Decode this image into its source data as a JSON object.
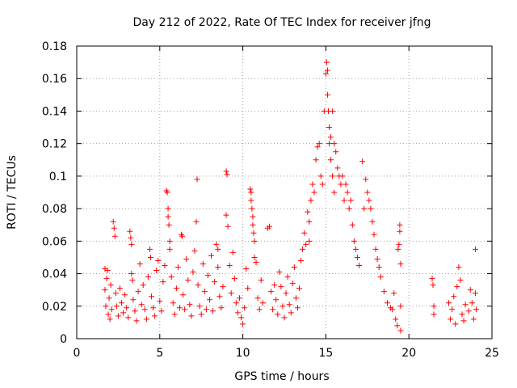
{
  "chart_data": {
    "type": "scatter",
    "title": "Day 212 of 2022, Rate Of TEC Index for receiver jfng",
    "xlabel": "GPS time / hours",
    "ylabel": "ROTI / TECUs",
    "xlim": [
      0,
      25
    ],
    "ylim": [
      0,
      0.18
    ],
    "xticks": [
      0,
      5,
      10,
      15,
      20,
      25
    ],
    "yticks": [
      0,
      0.02,
      0.04,
      0.06,
      0.08,
      0.1,
      0.12,
      0.14,
      0.16,
      0.18
    ],
    "ytick_labels": [
      "0",
      "0.02",
      "0.04",
      "0.06",
      "0.08",
      "0.1",
      "0.12",
      "0.14",
      "0.16",
      "0.18"
    ],
    "grid": true,
    "marker": "plus",
    "series": [
      {
        "color": "#ff0000",
        "points": [
          [
            1.7,
            0.043
          ],
          [
            1.7,
            0.03
          ],
          [
            1.75,
            0.02
          ],
          [
            1.8,
            0.037
          ],
          [
            1.85,
            0.042
          ],
          [
            1.9,
            0.015
          ],
          [
            1.95,
            0.025
          ],
          [
            2.0,
            0.012
          ],
          [
            2.05,
            0.033
          ],
          [
            2.1,
            0.018
          ],
          [
            2.2,
            0.072
          ],
          [
            2.25,
            0.068
          ],
          [
            2.3,
            0.063
          ],
          [
            2.35,
            0.028
          ],
          [
            2.4,
            0.02
          ],
          [
            2.5,
            0.014
          ],
          [
            2.6,
            0.031
          ],
          [
            2.7,
            0.022
          ],
          [
            2.8,
            0.016
          ],
          [
            2.9,
            0.027
          ],
          [
            3.0,
            0.019
          ],
          [
            3.1,
            0.013
          ],
          [
            3.2,
            0.066
          ],
          [
            3.25,
            0.062
          ],
          [
            3.3,
            0.058
          ],
          [
            3.3,
            0.04
          ],
          [
            3.35,
            0.036
          ],
          [
            3.4,
            0.024
          ],
          [
            3.5,
            0.017
          ],
          [
            3.6,
            0.011
          ],
          [
            3.7,
            0.029
          ],
          [
            3.8,
            0.046
          ],
          [
            3.9,
            0.021
          ],
          [
            4.0,
            0.033
          ],
          [
            4.1,
            0.018
          ],
          [
            4.2,
            0.012
          ],
          [
            4.3,
            0.038
          ],
          [
            4.4,
            0.055
          ],
          [
            4.45,
            0.05
          ],
          [
            4.5,
            0.026
          ],
          [
            4.6,
            0.019
          ],
          [
            4.7,
            0.014
          ],
          [
            4.8,
            0.042
          ],
          [
            4.9,
            0.048
          ],
          [
            5.0,
            0.023
          ],
          [
            5.1,
            0.017
          ],
          [
            5.2,
            0.035
          ],
          [
            5.3,
            0.045
          ],
          [
            5.4,
            0.091
          ],
          [
            5.45,
            0.09
          ],
          [
            5.5,
            0.08
          ],
          [
            5.5,
            0.075
          ],
          [
            5.55,
            0.07
          ],
          [
            5.6,
            0.06
          ],
          [
            5.6,
            0.055
          ],
          [
            5.7,
            0.038
          ],
          [
            5.8,
            0.022
          ],
          [
            5.9,
            0.015
          ],
          [
            6.0,
            0.031
          ],
          [
            6.1,
            0.044
          ],
          [
            6.2,
            0.019
          ],
          [
            6.3,
            0.064
          ],
          [
            6.35,
            0.063
          ],
          [
            6.4,
            0.027
          ],
          [
            6.5,
            0.018
          ],
          [
            6.6,
            0.049
          ],
          [
            6.7,
            0.036
          ],
          [
            6.8,
            0.021
          ],
          [
            6.9,
            0.014
          ],
          [
            7.0,
            0.041
          ],
          [
            7.1,
            0.054
          ],
          [
            7.2,
            0.072
          ],
          [
            7.25,
            0.098
          ],
          [
            7.3,
            0.033
          ],
          [
            7.4,
            0.02
          ],
          [
            7.5,
            0.015
          ],
          [
            7.6,
            0.046
          ],
          [
            7.7,
            0.029
          ],
          [
            7.8,
            0.018
          ],
          [
            7.9,
            0.039
          ],
          [
            8.0,
            0.024
          ],
          [
            8.1,
            0.051
          ],
          [
            8.2,
            0.017
          ],
          [
            8.3,
            0.035
          ],
          [
            8.4,
            0.058
          ],
          [
            8.5,
            0.055
          ],
          [
            8.5,
            0.044
          ],
          [
            8.6,
            0.026
          ],
          [
            8.7,
            0.019
          ],
          [
            8.8,
            0.032
          ],
          [
            9.0,
            0.103
          ],
          [
            9.05,
            0.101
          ],
          [
            9.0,
            0.076
          ],
          [
            9.1,
            0.069
          ],
          [
            9.2,
            0.045
          ],
          [
            9.3,
            0.028
          ],
          [
            9.4,
            0.053
          ],
          [
            9.5,
            0.037
          ],
          [
            9.6,
            0.022
          ],
          [
            9.7,
            0.016
          ],
          [
            9.8,
            0.025
          ],
          [
            9.9,
            0.013
          ],
          [
            10.0,
            0.009
          ],
          [
            10.1,
            0.019
          ],
          [
            10.2,
            0.043
          ],
          [
            10.3,
            0.031
          ],
          [
            10.45,
            0.092
          ],
          [
            10.5,
            0.09
          ],
          [
            10.5,
            0.085
          ],
          [
            10.55,
            0.08
          ],
          [
            10.6,
            0.075
          ],
          [
            10.6,
            0.07
          ],
          [
            10.65,
            0.065
          ],
          [
            10.7,
            0.06
          ],
          [
            10.7,
            0.05
          ],
          [
            10.8,
            0.047
          ],
          [
            10.9,
            0.025
          ],
          [
            11.0,
            0.018
          ],
          [
            11.1,
            0.036
          ],
          [
            11.2,
            0.022
          ],
          [
            11.5,
            0.068
          ],
          [
            11.6,
            0.069
          ],
          [
            11.7,
            0.029
          ],
          [
            11.8,
            0.018
          ],
          [
            11.9,
            0.033
          ],
          [
            12.0,
            0.024
          ],
          [
            12.1,
            0.015
          ],
          [
            12.2,
            0.041
          ],
          [
            12.3,
            0.032
          ],
          [
            12.4,
            0.02
          ],
          [
            12.5,
            0.013
          ],
          [
            12.6,
            0.028
          ],
          [
            12.7,
            0.038
          ],
          [
            12.8,
            0.021
          ],
          [
            12.9,
            0.016
          ],
          [
            13.0,
            0.034
          ],
          [
            13.1,
            0.044
          ],
          [
            13.2,
            0.025
          ],
          [
            13.3,
            0.019
          ],
          [
            13.4,
            0.031
          ],
          [
            13.5,
            0.048
          ],
          [
            13.6,
            0.055
          ],
          [
            13.7,
            0.065
          ],
          [
            13.8,
            0.058
          ],
          [
            13.9,
            0.078
          ],
          [
            14.0,
            0.072
          ],
          [
            14.0,
            0.06
          ],
          [
            14.1,
            0.085
          ],
          [
            14.2,
            0.095
          ],
          [
            14.3,
            0.09
          ],
          [
            14.4,
            0.11
          ],
          [
            14.5,
            0.118
          ],
          [
            14.6,
            0.12
          ],
          [
            14.7,
            0.1
          ],
          [
            14.8,
            0.095
          ],
          [
            14.9,
            0.14
          ],
          [
            15.0,
            0.163
          ],
          [
            15.05,
            0.17
          ],
          [
            15.1,
            0.165
          ],
          [
            15.1,
            0.15
          ],
          [
            15.15,
            0.14
          ],
          [
            15.2,
            0.13
          ],
          [
            15.2,
            0.12
          ],
          [
            15.3,
            0.124
          ],
          [
            15.3,
            0.11
          ],
          [
            15.4,
            0.14
          ],
          [
            15.4,
            0.1
          ],
          [
            15.5,
            0.12
          ],
          [
            15.5,
            0.09
          ],
          [
            15.6,
            0.115
          ],
          [
            15.7,
            0.105
          ],
          [
            15.8,
            0.1
          ],
          [
            15.9,
            0.095
          ],
          [
            16.0,
            0.1
          ],
          [
            16.1,
            0.085
          ],
          [
            16.2,
            0.095
          ],
          [
            16.3,
            0.09
          ],
          [
            16.4,
            0.08
          ],
          [
            16.5,
            0.085
          ],
          [
            16.6,
            0.07
          ],
          [
            16.7,
            0.06
          ],
          [
            16.8,
            0.055
          ],
          [
            16.9,
            0.05
          ],
          [
            17.0,
            0.045
          ],
          [
            17.2,
            0.109
          ],
          [
            17.3,
            0.08
          ],
          [
            17.4,
            0.098
          ],
          [
            17.5,
            0.09
          ],
          [
            17.6,
            0.085
          ],
          [
            17.7,
            0.08
          ],
          [
            17.8,
            0.072
          ],
          [
            17.9,
            0.064
          ],
          [
            18.0,
            0.055
          ],
          [
            18.1,
            0.049
          ],
          [
            18.2,
            0.044
          ],
          [
            18.3,
            0.038
          ],
          [
            18.5,
            0.029
          ],
          [
            18.7,
            0.022
          ],
          [
            18.9,
            0.019
          ],
          [
            19.0,
            0.018
          ],
          [
            19.1,
            0.028
          ],
          [
            19.2,
            0.012
          ],
          [
            19.3,
            0.008
          ],
          [
            19.35,
            0.055
          ],
          [
            19.4,
            0.058
          ],
          [
            19.45,
            0.066
          ],
          [
            19.45,
            0.07
          ],
          [
            19.5,
            0.046
          ],
          [
            19.5,
            0.02
          ],
          [
            19.5,
            0.005
          ],
          [
            21.4,
            0.037
          ],
          [
            21.45,
            0.033
          ],
          [
            21.5,
            0.02
          ],
          [
            21.5,
            0.015
          ],
          [
            22.4,
            0.022
          ],
          [
            22.5,
            0.012
          ],
          [
            22.6,
            0.018
          ],
          [
            22.7,
            0.026
          ],
          [
            22.8,
            0.009
          ],
          [
            22.9,
            0.032
          ],
          [
            23.0,
            0.044
          ],
          [
            23.1,
            0.036
          ],
          [
            23.2,
            0.015
          ],
          [
            23.3,
            0.011
          ],
          [
            23.4,
            0.021
          ],
          [
            23.6,
            0.017
          ],
          [
            23.7,
            0.03
          ],
          [
            23.8,
            0.022
          ],
          [
            23.9,
            0.012
          ],
          [
            24.0,
            0.055
          ],
          [
            24.0,
            0.028
          ],
          [
            24.05,
            0.018
          ]
        ]
      }
    ]
  }
}
